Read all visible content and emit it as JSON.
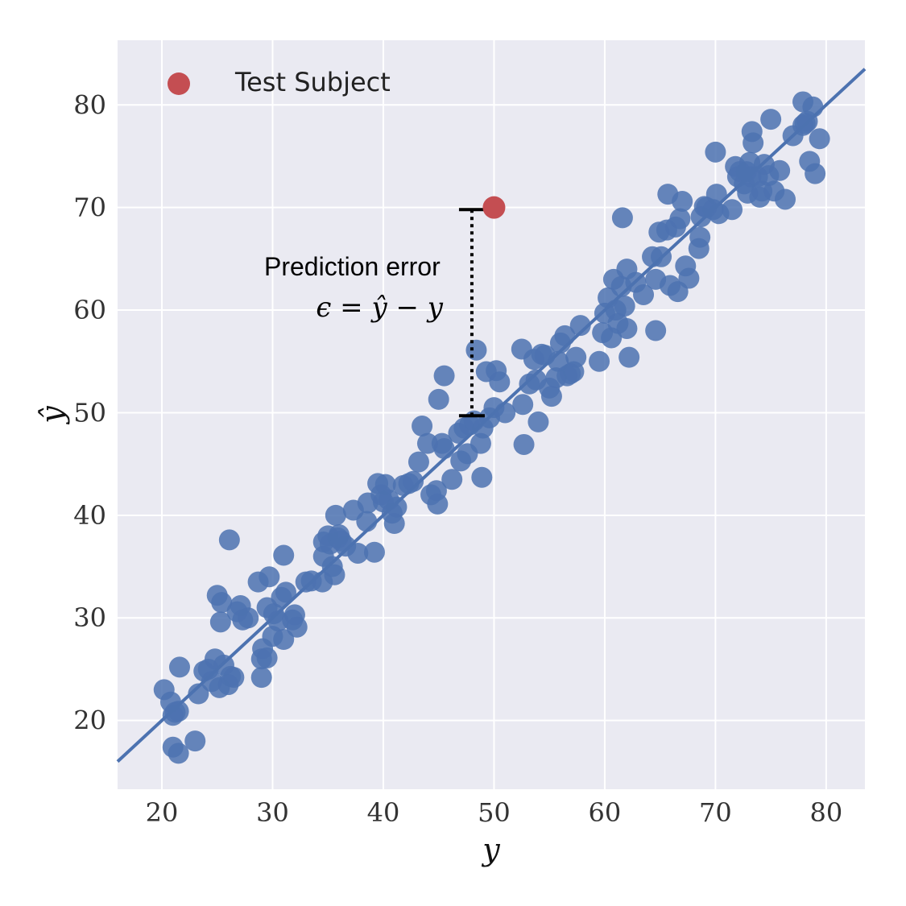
{
  "chart_data": {
    "type": "scatter",
    "title": "",
    "xlabel": "y",
    "ylabel": "ŷ",
    "xlim": [
      16,
      83.5
    ],
    "ylim": [
      13.3,
      86.3
    ],
    "xticks": [
      20,
      30,
      40,
      50,
      60,
      70,
      80
    ],
    "yticks": [
      20,
      30,
      40,
      50,
      60,
      70,
      80
    ],
    "grid": true,
    "colors": {
      "background": "#EAEAF2",
      "grid": "#FFFFFF",
      "points": "#4C72B0",
      "line": "#4C72B0",
      "highlight": "#C44E52"
    },
    "regression_line": {
      "slope": 1.0,
      "intercept": 0.0
    },
    "series": [
      {
        "points": [
          [
            20.2,
            23.0
          ],
          [
            20.8,
            21.8
          ],
          [
            21.0,
            20.5
          ],
          [
            21.2,
            20.8
          ],
          [
            21.5,
            20.9
          ],
          [
            21.0,
            17.4
          ],
          [
            21.5,
            16.8
          ],
          [
            21.6,
            25.2
          ],
          [
            23.0,
            18.0
          ],
          [
            23.3,
            22.6
          ],
          [
            23.8,
            24.8
          ],
          [
            24.2,
            25.0
          ],
          [
            24.5,
            23.8
          ],
          [
            24.8,
            26.0
          ],
          [
            25.2,
            23.2
          ],
          [
            25.6,
            25.4
          ],
          [
            25.0,
            32.2
          ],
          [
            25.4,
            31.5
          ],
          [
            25.3,
            29.6
          ],
          [
            26.0,
            23.5
          ],
          [
            26.2,
            24.3
          ],
          [
            26.5,
            24.2
          ],
          [
            26.1,
            37.6
          ],
          [
            26.8,
            30.6
          ],
          [
            27.1,
            31.2
          ],
          [
            27.3,
            29.8
          ],
          [
            27.8,
            30.0
          ],
          [
            28.7,
            33.5
          ],
          [
            29.1,
            27.0
          ],
          [
            29.0,
            26.0
          ],
          [
            29.5,
            26.1
          ],
          [
            29.7,
            34.0
          ],
          [
            30.0,
            28.2
          ],
          [
            29.5,
            31.0
          ],
          [
            30.1,
            30.4
          ],
          [
            30.5,
            29.7
          ],
          [
            30.8,
            32.0
          ],
          [
            31.0,
            27.9
          ],
          [
            31.2,
            32.5
          ],
          [
            31.0,
            36.1
          ],
          [
            31.8,
            29.8
          ],
          [
            32.0,
            30.3
          ],
          [
            32.2,
            29.1
          ],
          [
            29.0,
            24.2
          ],
          [
            33.0,
            33.5
          ],
          [
            33.5,
            33.6
          ],
          [
            34.5,
            33.5
          ],
          [
            34.6,
            36.0
          ],
          [
            34.6,
            37.4
          ],
          [
            35.0,
            38.0
          ],
          [
            35.2,
            37.2
          ],
          [
            35.4,
            35.0
          ],
          [
            35.6,
            34.2
          ],
          [
            35.9,
            37.8
          ],
          [
            36.0,
            38.1
          ],
          [
            36.2,
            37.5
          ],
          [
            35.7,
            40.0
          ],
          [
            36.6,
            37.0
          ],
          [
            37.3,
            40.5
          ],
          [
            37.7,
            36.3
          ],
          [
            38.5,
            39.4
          ],
          [
            38.6,
            41.2
          ],
          [
            39.2,
            36.4
          ],
          [
            39.5,
            43.1
          ],
          [
            39.8,
            42.0
          ],
          [
            40.0,
            41.3
          ],
          [
            40.2,
            43.0
          ],
          [
            40.5,
            41.5
          ],
          [
            40.8,
            40.2
          ],
          [
            41.0,
            39.2
          ],
          [
            41.2,
            40.8
          ],
          [
            41.8,
            42.9
          ],
          [
            42.3,
            43.1
          ],
          [
            42.7,
            43.3
          ],
          [
            43.2,
            45.2
          ],
          [
            43.5,
            48.7
          ],
          [
            44.0,
            47.0
          ],
          [
            44.3,
            42.0
          ],
          [
            44.8,
            42.4
          ],
          [
            44.9,
            41.1
          ],
          [
            45.0,
            51.3
          ],
          [
            45.3,
            47.0
          ],
          [
            45.5,
            53.6
          ],
          [
            45.5,
            46.5
          ],
          [
            46.2,
            43.5
          ],
          [
            46.8,
            48.0
          ],
          [
            47.0,
            45.3
          ],
          [
            47.3,
            48.5
          ],
          [
            47.6,
            46.0
          ],
          [
            47.8,
            48.8
          ],
          [
            48.2,
            49.2
          ],
          [
            48.4,
            56.1
          ],
          [
            48.8,
            47.0
          ],
          [
            49.0,
            48.5
          ],
          [
            48.9,
            43.7
          ],
          [
            49.3,
            54.0
          ],
          [
            49.6,
            49.5
          ],
          [
            50.2,
            54.1
          ],
          [
            50.0,
            50.5
          ],
          [
            50.5,
            53.0
          ],
          [
            51.0,
            50.0
          ],
          [
            52.5,
            56.2
          ],
          [
            52.6,
            50.8
          ],
          [
            52.7,
            46.9
          ],
          [
            53.2,
            52.8
          ],
          [
            53.6,
            55.2
          ],
          [
            53.8,
            53.2
          ],
          [
            54.0,
            49.1
          ],
          [
            54.3,
            55.7
          ],
          [
            54.6,
            55.6
          ],
          [
            55.0,
            52.4
          ],
          [
            55.2,
            51.6
          ],
          [
            55.6,
            53.4
          ],
          [
            55.8,
            55.0
          ],
          [
            56.0,
            56.8
          ],
          [
            56.4,
            57.5
          ],
          [
            56.6,
            53.6
          ],
          [
            56.9,
            53.8
          ],
          [
            57.2,
            54.0
          ],
          [
            57.4,
            55.4
          ],
          [
            57.8,
            58.5
          ],
          [
            59.5,
            55.0
          ],
          [
            59.8,
            57.8
          ],
          [
            60.0,
            59.7
          ],
          [
            60.3,
            61.2
          ],
          [
            60.6,
            57.3
          ],
          [
            60.8,
            63.0
          ],
          [
            61.0,
            60.0
          ],
          [
            61.2,
            58.7
          ],
          [
            61.5,
            62.3
          ],
          [
            61.8,
            60.4
          ],
          [
            61.6,
            69.0
          ],
          [
            62.0,
            64.0
          ],
          [
            62.2,
            55.4
          ],
          [
            62.0,
            58.2
          ],
          [
            62.8,
            62.7
          ],
          [
            63.5,
            61.5
          ],
          [
            64.3,
            65.2
          ],
          [
            64.6,
            58.0
          ],
          [
            64.6,
            63.0
          ],
          [
            64.9,
            67.6
          ],
          [
            65.1,
            65.2
          ],
          [
            65.6,
            67.8
          ],
          [
            65.7,
            71.3
          ],
          [
            65.9,
            62.4
          ],
          [
            66.4,
            68.1
          ],
          [
            66.6,
            61.8
          ],
          [
            66.8,
            68.9
          ],
          [
            67.0,
            70.6
          ],
          [
            67.3,
            64.3
          ],
          [
            67.6,
            63.1
          ],
          [
            68.5,
            66.0
          ],
          [
            68.6,
            67.1
          ],
          [
            68.7,
            69.1
          ],
          [
            69.0,
            70.1
          ],
          [
            69.2,
            70.0
          ],
          [
            69.8,
            69.8
          ],
          [
            70.0,
            75.4
          ],
          [
            70.1,
            71.3
          ],
          [
            70.3,
            69.4
          ],
          [
            71.5,
            69.8
          ],
          [
            71.8,
            74.0
          ],
          [
            72.0,
            73.0
          ],
          [
            72.2,
            73.5
          ],
          [
            72.6,
            72.3
          ],
          [
            72.8,
            73.5
          ],
          [
            72.9,
            71.4
          ],
          [
            73.1,
            74.4
          ],
          [
            73.2,
            73.0
          ],
          [
            73.4,
            76.3
          ],
          [
            73.3,
            77.4
          ],
          [
            73.8,
            73.0
          ],
          [
            74.0,
            71.0
          ],
          [
            74.2,
            71.6
          ],
          [
            74.4,
            74.2
          ],
          [
            74.8,
            73.1
          ],
          [
            75.0,
            78.6
          ],
          [
            75.3,
            71.6
          ],
          [
            75.8,
            73.6
          ],
          [
            76.3,
            70.8
          ],
          [
            77.0,
            77.0
          ],
          [
            77.9,
            80.3
          ],
          [
            77.9,
            78.0
          ],
          [
            78.1,
            78.2
          ],
          [
            78.3,
            78.4
          ],
          [
            78.5,
            74.5
          ],
          [
            79.0,
            73.3
          ],
          [
            79.4,
            76.7
          ],
          [
            78.8,
            79.8
          ]
        ]
      }
    ],
    "highlight_point": {
      "label": "Test Subject",
      "x": 50.0,
      "y": 70.0
    },
    "annotation": {
      "text": "Prediction error",
      "formula": "ϵ = ŷ − y",
      "x": 48.0,
      "y_from": 49.7,
      "y_to": 69.8
    },
    "legend": {
      "placement": "top-left"
    }
  }
}
